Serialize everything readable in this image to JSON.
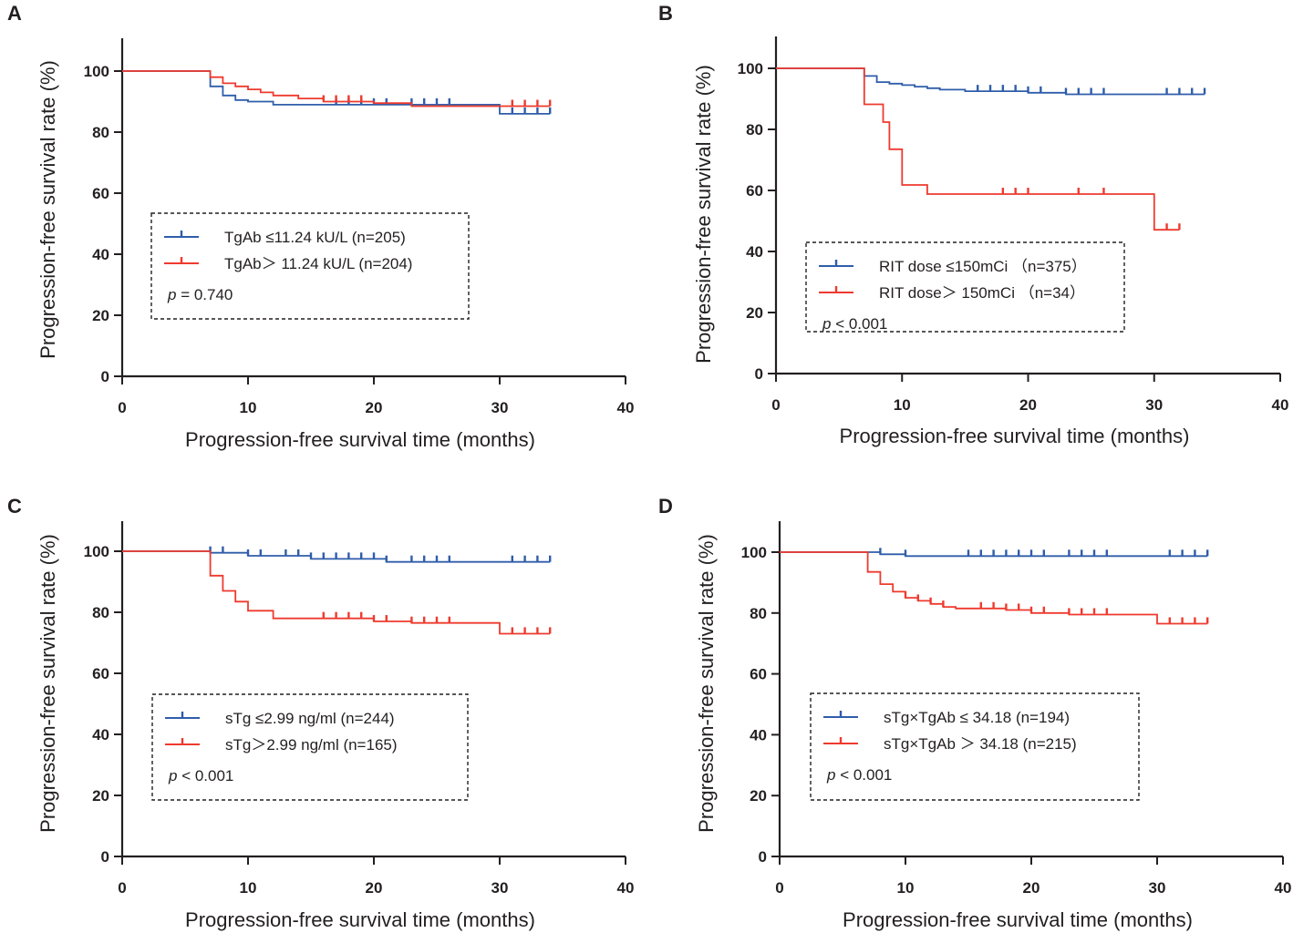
{
  "figure": {
    "colors": {
      "group1": "#2f5daa",
      "group2": "#ee3a2e",
      "axis": "#231f20"
    }
  },
  "chart_data": [
    {
      "panel": "A",
      "type": "line",
      "subtype": "kaplan-meier",
      "ylabel": "Progression-free survival rate (%)",
      "xlabel": "Progression-free survival time (months)",
      "xlim": [
        0,
        40
      ],
      "ylim": [
        0,
        110
      ],
      "xticks": [
        "0",
        "10",
        "20",
        "30",
        "40"
      ],
      "yticks": [
        "0",
        "20",
        "40",
        "60",
        "80",
        "100"
      ],
      "legend_placement": "center-left",
      "p_text": " = 0.740",
      "series": [
        {
          "name": "TgAb ≤11.24 kU/L (n=205)",
          "legend_label": "TgAb ≤11.24 kU/L (n=205)",
          "color": "#2f5daa",
          "steps": [
            [
              0,
              100
            ],
            [
              7,
              95
            ],
            [
              8,
              92
            ],
            [
              9,
              90.5
            ],
            [
              10,
              90
            ],
            [
              12,
              89
            ],
            [
              30,
              86
            ],
            [
              34,
              86
            ]
          ],
          "censored": [
            17,
            18,
            19,
            20,
            21,
            23,
            24,
            25,
            26,
            31,
            32,
            33,
            34
          ]
        },
        {
          "name": "TgAb > 11.24 kU/L (n=204)",
          "legend_label": "TgAb＞ 11.24 kU/L (n=204)",
          "color": "#ee3a2e",
          "steps": [
            [
              0,
              100
            ],
            [
              7,
              98
            ],
            [
              8,
              96
            ],
            [
              9,
              95
            ],
            [
              10,
              94
            ],
            [
              11,
              93
            ],
            [
              12,
              92
            ],
            [
              14,
              91
            ],
            [
              16,
              90
            ],
            [
              20,
              89.5
            ],
            [
              23,
              88.5
            ],
            [
              34,
              88.5
            ]
          ],
          "censored": [
            16,
            17,
            18,
            19,
            31,
            32,
            33,
            34
          ]
        }
      ]
    },
    {
      "panel": "B",
      "type": "line",
      "subtype": "kaplan-meier",
      "ylabel": "Progression-free survival rate (%)",
      "xlabel": "Progression-free survival time (months)",
      "xlim": [
        0,
        40
      ],
      "ylim": [
        0,
        110
      ],
      "xticks": [
        "0",
        "10",
        "20",
        "30",
        "40"
      ],
      "yticks": [
        "0",
        "20",
        "40",
        "60",
        "80",
        "100"
      ],
      "legend_placement": "bottom-left",
      "p_text": " < 0.001",
      "series": [
        {
          "name": "RIT dose ≤150mCi (n=375)",
          "legend_label": "RIT dose ≤150mCi （n=375）",
          "color": "#2f5daa",
          "steps": [
            [
              0,
              100
            ],
            [
              7,
              97.5
            ],
            [
              8,
              95.5
            ],
            [
              9,
              95
            ],
            [
              10,
              94.5
            ],
            [
              11,
              94
            ],
            [
              12,
              93.5
            ],
            [
              13,
              93
            ],
            [
              15,
              92.5
            ],
            [
              17,
              92.5
            ],
            [
              20,
              92
            ],
            [
              23,
              91.5
            ],
            [
              34,
              91.5
            ]
          ],
          "censored": [
            16,
            17,
            18,
            19,
            20,
            21,
            23,
            24,
            25,
            26,
            31,
            32,
            33,
            34
          ]
        },
        {
          "name": "RIT dose > 150mCi (n=34)",
          "legend_label": "RIT dose＞ 150mCi （n=34）",
          "color": "#ee3a2e",
          "steps": [
            [
              0,
              100
            ],
            [
              7,
              88.2
            ],
            [
              8.5,
              82.4
            ],
            [
              9,
              73.5
            ],
            [
              10,
              61.8
            ],
            [
              12,
              58.8
            ],
            [
              30,
              47.1
            ],
            [
              32,
              47.1
            ]
          ],
          "censored": [
            18,
            19,
            20,
            24,
            26,
            31,
            32
          ]
        }
      ]
    },
    {
      "panel": "C",
      "type": "line",
      "subtype": "kaplan-meier",
      "ylabel": "Progression-free survival rate (%)",
      "xlabel": "Progression-free survival time (months)",
      "xlim": [
        0,
        40
      ],
      "ylim": [
        0,
        110
      ],
      "xticks": [
        "0",
        "10",
        "20",
        "30",
        "40"
      ],
      "yticks": [
        "0",
        "20",
        "40",
        "60",
        "80",
        "100"
      ],
      "legend_placement": "center-left",
      "p_text": " < 0.001",
      "series": [
        {
          "name": "sTg ≤2.99 ng/ml (n=244)",
          "legend_label": "sTg ≤2.99 ng/ml (n=244)",
          "color": "#2f5daa",
          "steps": [
            [
              0,
              100
            ],
            [
              7,
              99.5
            ],
            [
              10,
              98.5
            ],
            [
              15,
              97.5
            ],
            [
              21,
              96.5
            ],
            [
              34,
              96.5
            ]
          ],
          "censored": [
            7,
            8,
            10,
            11,
            13,
            14,
            15,
            16,
            17,
            18,
            19,
            20,
            21,
            23,
            24,
            25,
            26,
            31,
            32,
            33,
            34
          ]
        },
        {
          "name": "sTg > 2.99 ng/ml (n=165)",
          "legend_label": "sTg＞2.99 ng/ml (n=165)",
          "color": "#ee3a2e",
          "steps": [
            [
              0,
              100
            ],
            [
              7,
              92
            ],
            [
              8,
              87
            ],
            [
              9,
              83.5
            ],
            [
              10,
              80.5
            ],
            [
              12,
              78
            ],
            [
              20,
              77
            ],
            [
              23,
              76.5
            ],
            [
              30,
              73
            ],
            [
              34,
              73
            ]
          ],
          "censored": [
            16,
            17,
            18,
            19,
            20,
            21,
            23,
            24,
            25,
            26,
            31,
            32,
            33,
            34
          ]
        }
      ]
    },
    {
      "panel": "D",
      "type": "line",
      "subtype": "kaplan-meier",
      "ylabel": "Progression-free survival rate (%)",
      "xlabel": "Progression-free survival time (months)",
      "xlim": [
        0,
        40
      ],
      "ylim": [
        0,
        110
      ],
      "xticks": [
        "0",
        "10",
        "20",
        "30",
        "40"
      ],
      "yticks": [
        "0",
        "20",
        "40",
        "60",
        "80",
        "100"
      ],
      "legend_placement": "center-left",
      "p_text": " < 0.001",
      "series": [
        {
          "name": "sTg×TgAb ≤ 34.18 (n=194)",
          "legend_label": "sTg×TgAb ≤ 34.18 (n=194)",
          "color": "#2f5daa",
          "steps": [
            [
              0,
              100
            ],
            [
              8,
              99.3
            ],
            [
              10,
              98.7
            ],
            [
              34,
              98.7
            ]
          ],
          "censored": [
            8,
            10,
            15,
            16,
            17,
            18,
            19,
            20,
            21,
            23,
            24,
            25,
            26,
            31,
            32,
            33,
            34
          ]
        },
        {
          "name": "sTg×TgAb > 34.18 (n=215)",
          "legend_label": "sTg×TgAb ＞ 34.18 (n=215)",
          "color": "#ee3a2e",
          "steps": [
            [
              0,
              100
            ],
            [
              7,
              93.5
            ],
            [
              8,
              89.5
            ],
            [
              9,
              87
            ],
            [
              10,
              85
            ],
            [
              11,
              84
            ],
            [
              12,
              83
            ],
            [
              13,
              82
            ],
            [
              14,
              81.5
            ],
            [
              18,
              81
            ],
            [
              20,
              80
            ],
            [
              23,
              79.5
            ],
            [
              30,
              76.5
            ],
            [
              34,
              76.5
            ]
          ],
          "censored": [
            10,
            11,
            12,
            13,
            16,
            17,
            18,
            19,
            20,
            21,
            23,
            24,
            25,
            26,
            31,
            32,
            33,
            34
          ]
        }
      ]
    }
  ]
}
